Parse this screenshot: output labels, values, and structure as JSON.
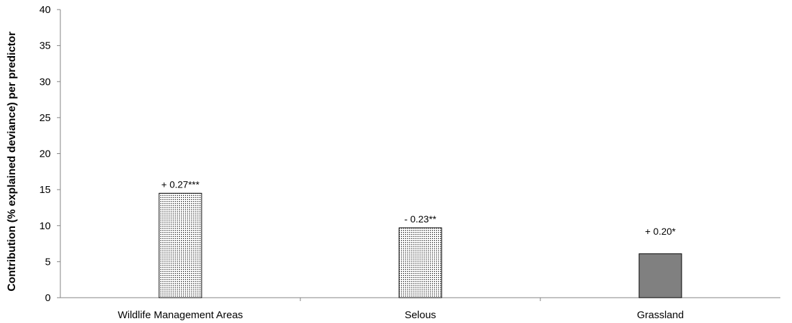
{
  "chart_data": {
    "type": "bar",
    "title": "",
    "xlabel": "",
    "ylabel": "Contribution (% explained deviance) per predictor",
    "ylim": [
      0,
      40
    ],
    "yticks": [
      0,
      5,
      10,
      15,
      20,
      25,
      30,
      35,
      40
    ],
    "grid": false,
    "categories": [
      "Wildlife Management Areas",
      "Selous",
      "Grassland"
    ],
    "values": [
      14.5,
      9.7,
      6.1
    ],
    "data_labels": [
      "+ 0.27***",
      "- 0.23**",
      "+ 0.20*"
    ],
    "fills": [
      "dotted",
      "dotted",
      "solid"
    ],
    "colors": {
      "solid_fill": "#808080",
      "dot": "#000000",
      "axis": "#808080"
    }
  }
}
